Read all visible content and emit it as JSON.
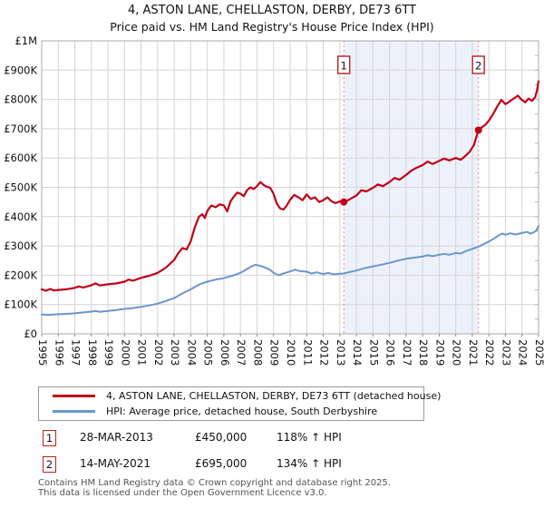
{
  "chart_data": {
    "type": "line",
    "title": "4, ASTON LANE, CHELLASTON, DERBY, DE73 6TT",
    "subtitle": "Price paid vs. HM Land Registry's House Price Index (HPI)",
    "grid": true,
    "legend_position": "bottom",
    "x_range": [
      1995,
      2025
    ],
    "y_range": [
      0,
      1000000
    ],
    "x_ticks": [
      1995,
      1996,
      1997,
      1998,
      1999,
      2000,
      2001,
      2002,
      2003,
      2004,
      2005,
      2006,
      2007,
      2008,
      2009,
      2010,
      2011,
      2012,
      2013,
      2014,
      2015,
      2016,
      2017,
      2018,
      2019,
      2020,
      2021,
      2022,
      2023,
      2024,
      2025
    ],
    "y_tick_step": 100000,
    "y_tick_labels": [
      "£0",
      "£100K",
      "£200K",
      "£300K",
      "£400K",
      "£500K",
      "£600K",
      "£700K",
      "£800K",
      "£900K",
      "£1M"
    ],
    "band_color": "#edf1fb",
    "sale_line_color": "#f28b8b",
    "grid_color": "#d4d4d4",
    "border_color": "#a8a8a8",
    "series": [
      {
        "name": "4, ASTON LANE, CHELLASTON, DERBY, DE73 6TT (detached house)",
        "color": "#c00018",
        "points": [
          [
            1995.0,
            152000
          ],
          [
            1995.25,
            147000
          ],
          [
            1995.5,
            153000
          ],
          [
            1995.75,
            148000
          ],
          [
            1996.0,
            150000
          ],
          [
            1996.5,
            152000
          ],
          [
            1997.0,
            157000
          ],
          [
            1997.25,
            162000
          ],
          [
            1997.5,
            158000
          ],
          [
            1998.0,
            166000
          ],
          [
            1998.25,
            172000
          ],
          [
            1998.5,
            165000
          ],
          [
            1999.0,
            169000
          ],
          [
            1999.5,
            172000
          ],
          [
            2000.0,
            178000
          ],
          [
            2000.25,
            185000
          ],
          [
            2000.5,
            181000
          ],
          [
            2001.0,
            191000
          ],
          [
            2001.5,
            198000
          ],
          [
            2002.0,
            208000
          ],
          [
            2002.5,
            226000
          ],
          [
            2003.0,
            252000
          ],
          [
            2003.25,
            276000
          ],
          [
            2003.5,
            293000
          ],
          [
            2003.75,
            288000
          ],
          [
            2004.0,
            316000
          ],
          [
            2004.25,
            365000
          ],
          [
            2004.5,
            400000
          ],
          [
            2004.7,
            408000
          ],
          [
            2004.85,
            395000
          ],
          [
            2005.0,
            420000
          ],
          [
            2005.25,
            438000
          ],
          [
            2005.5,
            432000
          ],
          [
            2005.75,
            442000
          ],
          [
            2006.0,
            438000
          ],
          [
            2006.2,
            418000
          ],
          [
            2006.4,
            452000
          ],
          [
            2006.6,
            468000
          ],
          [
            2006.8,
            482000
          ],
          [
            2007.0,
            478000
          ],
          [
            2007.2,
            470000
          ],
          [
            2007.4,
            490000
          ],
          [
            2007.6,
            500000
          ],
          [
            2007.8,
            494000
          ],
          [
            2008.0,
            504000
          ],
          [
            2008.2,
            518000
          ],
          [
            2008.4,
            508000
          ],
          [
            2008.6,
            502000
          ],
          [
            2008.8,
            498000
          ],
          [
            2009.0,
            478000
          ],
          [
            2009.2,
            444000
          ],
          [
            2009.4,
            428000
          ],
          [
            2009.6,
            424000
          ],
          [
            2009.8,
            438000
          ],
          [
            2010.0,
            458000
          ],
          [
            2010.25,
            474000
          ],
          [
            2010.5,
            466000
          ],
          [
            2010.75,
            456000
          ],
          [
            2011.0,
            476000
          ],
          [
            2011.25,
            460000
          ],
          [
            2011.5,
            466000
          ],
          [
            2011.75,
            450000
          ],
          [
            2012.0,
            456000
          ],
          [
            2012.25,
            466000
          ],
          [
            2012.5,
            452000
          ],
          [
            2012.75,
            446000
          ],
          [
            2013.0,
            452000
          ],
          [
            2013.24,
            450000
          ],
          [
            2013.5,
            456000
          ],
          [
            2013.75,
            464000
          ],
          [
            2014.0,
            472000
          ],
          [
            2014.3,
            490000
          ],
          [
            2014.6,
            486000
          ],
          [
            2015.0,
            498000
          ],
          [
            2015.3,
            510000
          ],
          [
            2015.6,
            504000
          ],
          [
            2016.0,
            518000
          ],
          [
            2016.3,
            532000
          ],
          [
            2016.6,
            526000
          ],
          [
            2017.0,
            542000
          ],
          [
            2017.3,
            556000
          ],
          [
            2017.6,
            566000
          ],
          [
            2018.0,
            576000
          ],
          [
            2018.3,
            588000
          ],
          [
            2018.6,
            580000
          ],
          [
            2019.0,
            590000
          ],
          [
            2019.3,
            598000
          ],
          [
            2019.6,
            592000
          ],
          [
            2020.0,
            600000
          ],
          [
            2020.3,
            594000
          ],
          [
            2020.6,
            608000
          ],
          [
            2020.85,
            622000
          ],
          [
            2021.1,
            645000
          ],
          [
            2021.37,
            695000
          ],
          [
            2021.6,
            706000
          ],
          [
            2021.8,
            714000
          ],
          [
            2022.0,
            728000
          ],
          [
            2022.25,
            750000
          ],
          [
            2022.5,
            775000
          ],
          [
            2022.75,
            798000
          ],
          [
            2023.0,
            784000
          ],
          [
            2023.25,
            793000
          ],
          [
            2023.5,
            803000
          ],
          [
            2023.75,
            813000
          ],
          [
            2024.0,
            798000
          ],
          [
            2024.2,
            790000
          ],
          [
            2024.4,
            803000
          ],
          [
            2024.6,
            795000
          ],
          [
            2024.8,
            808000
          ],
          [
            2024.9,
            830000
          ],
          [
            2025.0,
            862000
          ]
        ]
      },
      {
        "name": "HPI: Average price, detached house, South Derbyshire",
        "color": "#6b96cb",
        "points": [
          [
            1995.0,
            66000
          ],
          [
            1995.5,
            65000
          ],
          [
            1996.0,
            67000
          ],
          [
            1996.5,
            68000
          ],
          [
            1997.0,
            70000
          ],
          [
            1997.5,
            73000
          ],
          [
            1998.0,
            76000
          ],
          [
            1998.25,
            78000
          ],
          [
            1998.5,
            75000
          ],
          [
            1999.0,
            78000
          ],
          [
            1999.5,
            81000
          ],
          [
            2000.0,
            85000
          ],
          [
            2000.5,
            88000
          ],
          [
            2001.0,
            92000
          ],
          [
            2001.5,
            97000
          ],
          [
            2002.0,
            103000
          ],
          [
            2002.5,
            112000
          ],
          [
            2003.0,
            122000
          ],
          [
            2003.5,
            138000
          ],
          [
            2004.0,
            152000
          ],
          [
            2004.5,
            168000
          ],
          [
            2005.0,
            178000
          ],
          [
            2005.5,
            185000
          ],
          [
            2006.0,
            190000
          ],
          [
            2006.5,
            198000
          ],
          [
            2007.0,
            208000
          ],
          [
            2007.3,
            218000
          ],
          [
            2007.6,
            228000
          ],
          [
            2007.9,
            236000
          ],
          [
            2008.2,
            232000
          ],
          [
            2008.5,
            226000
          ],
          [
            2008.8,
            218000
          ],
          [
            2009.0,
            208000
          ],
          [
            2009.3,
            200000
          ],
          [
            2009.6,
            206000
          ],
          [
            2010.0,
            213000
          ],
          [
            2010.3,
            219000
          ],
          [
            2010.6,
            214000
          ],
          [
            2011.0,
            212000
          ],
          [
            2011.3,
            206000
          ],
          [
            2011.6,
            210000
          ],
          [
            2012.0,
            204000
          ],
          [
            2012.3,
            208000
          ],
          [
            2012.6,
            203000
          ],
          [
            2013.0,
            205000
          ],
          [
            2013.24,
            206000
          ],
          [
            2013.6,
            211000
          ],
          [
            2014.0,
            216000
          ],
          [
            2014.5,
            224000
          ],
          [
            2015.0,
            230000
          ],
          [
            2015.5,
            236000
          ],
          [
            2016.0,
            242000
          ],
          [
            2016.5,
            250000
          ],
          [
            2017.0,
            256000
          ],
          [
            2017.5,
            260000
          ],
          [
            2018.0,
            264000
          ],
          [
            2018.3,
            268000
          ],
          [
            2018.6,
            265000
          ],
          [
            2019.0,
            270000
          ],
          [
            2019.3,
            273000
          ],
          [
            2019.6,
            270000
          ],
          [
            2020.0,
            276000
          ],
          [
            2020.3,
            274000
          ],
          [
            2020.6,
            282000
          ],
          [
            2021.0,
            290000
          ],
          [
            2021.37,
            297000
          ],
          [
            2021.6,
            304000
          ],
          [
            2022.0,
            315000
          ],
          [
            2022.3,
            325000
          ],
          [
            2022.6,
            336000
          ],
          [
            2022.8,
            342000
          ],
          [
            2023.0,
            338000
          ],
          [
            2023.3,
            343000
          ],
          [
            2023.6,
            339000
          ],
          [
            2024.0,
            344000
          ],
          [
            2024.3,
            348000
          ],
          [
            2024.5,
            342000
          ],
          [
            2024.7,
            346000
          ],
          [
            2024.85,
            352000
          ],
          [
            2025.0,
            368000
          ]
        ]
      }
    ],
    "sales": [
      {
        "label": "1",
        "x": 2013.24,
        "y": 450000,
        "date": "28-MAR-2013",
        "price": "£450,000",
        "hpi": "118% ↑ HPI"
      },
      {
        "label": "2",
        "x": 2021.37,
        "y": 695000,
        "date": "14-MAY-2021",
        "price": "£695,000",
        "hpi": "134% ↑ HPI"
      }
    ]
  },
  "footer": {
    "line1": "Contains HM Land Registry data © Crown copyright and database right 2025.",
    "line2": "This data is licensed under the Open Government Licence v3.0."
  }
}
